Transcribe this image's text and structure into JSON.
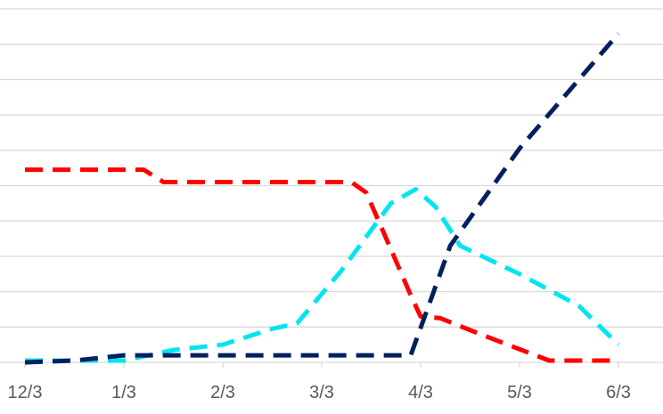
{
  "chart_data": {
    "type": "line",
    "x_ticks": [
      "12/3",
      "1/3",
      "2/3",
      "3/3",
      "4/3",
      "5/3",
      "6/3"
    ],
    "ylim": [
      0,
      10
    ],
    "y_gridlines": 10,
    "grid": true,
    "series": [
      {
        "color": "#ff0000",
        "points": [
          [
            0,
            5.45
          ],
          [
            1.2,
            5.45
          ],
          [
            1.4,
            5.1
          ],
          [
            3.3,
            5.1
          ],
          [
            3.45,
            4.8
          ],
          [
            3.7,
            3.2
          ],
          [
            3.9,
            1.9
          ],
          [
            4.0,
            1.3
          ],
          [
            4.2,
            1.25
          ],
          [
            4.6,
            0.8
          ],
          [
            5.3,
            0.05
          ],
          [
            6.0,
            0.05
          ]
        ]
      },
      {
        "color": "#00e5ee",
        "points": [
          [
            0,
            0.05
          ],
          [
            1.0,
            0.05
          ],
          [
            1.5,
            0.35
          ],
          [
            2.0,
            0.5
          ],
          [
            2.5,
            0.95
          ],
          [
            2.75,
            1.1
          ],
          [
            3.2,
            2.6
          ],
          [
            3.7,
            4.5
          ],
          [
            3.95,
            4.9
          ],
          [
            4.15,
            4.4
          ],
          [
            4.4,
            3.3
          ],
          [
            5.0,
            2.5
          ],
          [
            5.6,
            1.6
          ],
          [
            6.0,
            0.5
          ]
        ]
      },
      {
        "color": "#002060",
        "points": [
          [
            0,
            0.0
          ],
          [
            0.5,
            0.05
          ],
          [
            1.0,
            0.2
          ],
          [
            3.4,
            0.2
          ],
          [
            3.9,
            0.2
          ],
          [
            4.3,
            3.3
          ],
          [
            5.0,
            6.05
          ],
          [
            6.0,
            9.3
          ]
        ]
      }
    ]
  }
}
